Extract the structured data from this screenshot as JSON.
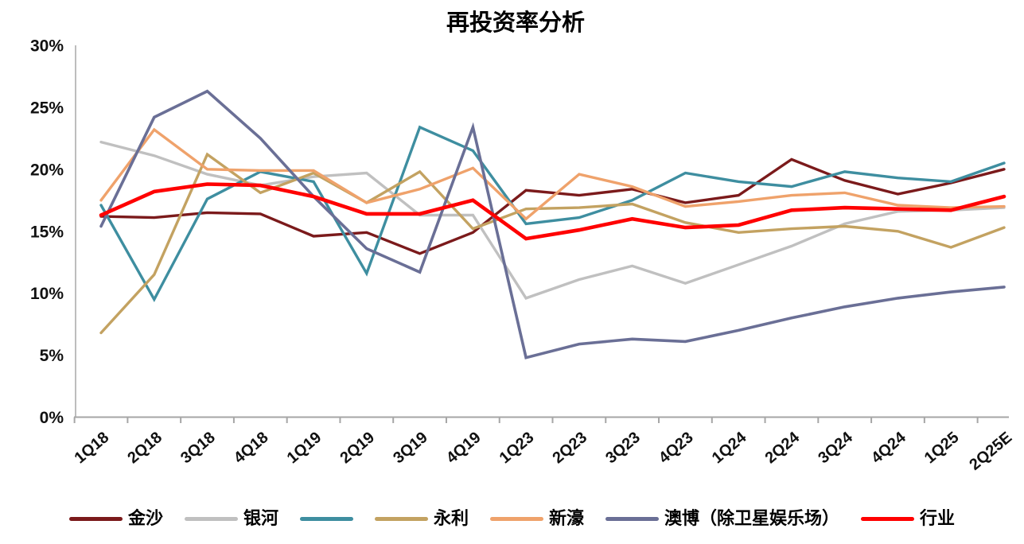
{
  "title": "再投资率分析",
  "y_axis": {
    "tick_labels": [
      "0%",
      "5%",
      "10%",
      "15%",
      "20%",
      "25%",
      "30%"
    ],
    "min": 0,
    "max": 30,
    "step": 5
  },
  "chart_data": {
    "type": "line",
    "title": "再投资率分析",
    "categories": [
      "1Q18",
      "2Q18",
      "3Q18",
      "4Q18",
      "1Q19",
      "2Q19",
      "3Q19",
      "4Q19",
      "1Q23",
      "2Q23",
      "3Q23",
      "4Q23",
      "1Q24",
      "2Q24",
      "3Q24",
      "4Q24",
      "1Q25",
      "2Q25E"
    ],
    "ylim": [
      0,
      30
    ],
    "grid": false,
    "legend_position": "bottom",
    "series": [
      {
        "name": "金沙",
        "color": "#7B1A1B",
        "width": 3.4,
        "values": [
          16.2,
          16.1,
          16.5,
          16.4,
          14.6,
          14.9,
          13.2,
          14.9,
          18.3,
          17.9,
          18.4,
          17.3,
          17.9,
          20.8,
          19.1,
          18.0,
          18.9,
          20.0
        ]
      },
      {
        "name": "银河",
        "color": "#C0C0C0",
        "width": 3.4,
        "values": [
          22.2,
          21.1,
          19.6,
          18.7,
          19.4,
          19.7,
          16.3,
          16.3,
          9.6,
          11.1,
          12.2,
          10.8,
          12.3,
          13.8,
          15.6,
          16.6,
          16.7,
          16.9
        ]
      },
      {
        "name": "",
        "color": "#3E8EA0",
        "width": 3.4,
        "values": [
          17.1,
          9.5,
          17.6,
          19.8,
          19.0,
          11.6,
          23.4,
          21.5,
          15.6,
          16.1,
          17.5,
          19.7,
          19.0,
          18.6,
          19.8,
          19.3,
          19.0,
          20.5
        ]
      },
      {
        "name": "永利",
        "color": "#C3A261",
        "width": 3.4,
        "values": [
          6.8,
          11.5,
          21.2,
          18.1,
          19.7,
          17.3,
          19.8,
          15.2,
          16.8,
          16.9,
          17.2,
          15.7,
          14.9,
          15.2,
          15.4,
          15.0,
          13.7,
          15.3
        ]
      },
      {
        "name": "新濠",
        "color": "#EFA26B",
        "width": 3.4,
        "values": [
          17.5,
          23.2,
          20.0,
          19.9,
          19.9,
          17.3,
          18.4,
          20.1,
          16.0,
          19.6,
          18.6,
          17.0,
          17.4,
          17.9,
          18.1,
          17.1,
          16.9,
          17.0
        ]
      },
      {
        "name": "澳博（除卫星娱乐场）",
        "color": "#6A6F96",
        "width": 3.6,
        "values": [
          15.4,
          24.2,
          26.3,
          22.5,
          17.8,
          13.6,
          11.7,
          23.4,
          4.8,
          5.9,
          6.3,
          6.1,
          7.0,
          8.0,
          8.9,
          9.6,
          10.1,
          10.5
        ]
      },
      {
        "name": "行业",
        "color": "#FF0000",
        "width": 4.6,
        "values": [
          16.3,
          18.2,
          18.8,
          18.7,
          17.8,
          16.4,
          16.4,
          17.5,
          14.4,
          15.1,
          16.0,
          15.3,
          15.5,
          16.7,
          16.9,
          16.8,
          16.7,
          17.8
        ]
      }
    ]
  }
}
